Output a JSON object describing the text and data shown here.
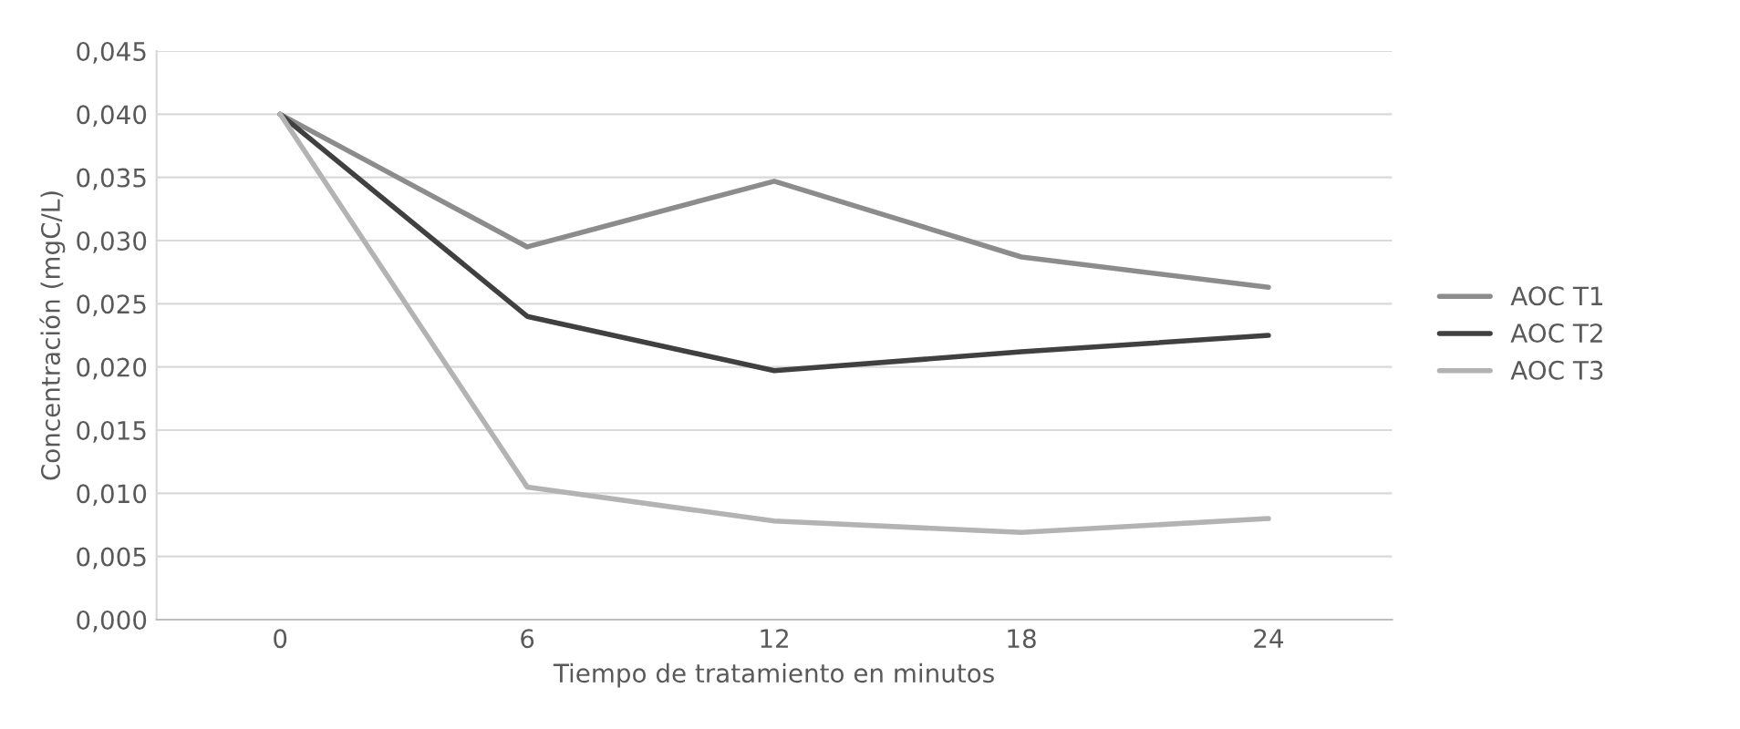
{
  "chart_data": {
    "type": "line",
    "xlabel": "Tiempo de tratamiento en minutos",
    "ylabel": "Concentración (mgC/L)",
    "categories": [
      "0",
      "6",
      "12",
      "18",
      "24"
    ],
    "series": [
      {
        "name": "AOC T1",
        "color": "#8c8c8c",
        "values": [
          0.04,
          0.0295,
          0.0347,
          0.0287,
          0.0263
        ]
      },
      {
        "name": "AOC T2",
        "color": "#404040",
        "values": [
          0.04,
          0.024,
          0.0197,
          0.0212,
          0.0225
        ]
      },
      {
        "name": "AOC T3",
        "color": "#b3b3b3",
        "values": [
          0.04,
          0.0105,
          0.0078,
          0.0069,
          0.008
        ]
      }
    ],
    "ylim": [
      0,
      0.045
    ],
    "yticks": [
      {
        "value": 0,
        "label": "0,000"
      },
      {
        "value": 0.005,
        "label": "0,005"
      },
      {
        "value": 0.01,
        "label": "0,010"
      },
      {
        "value": 0.015,
        "label": "0,015"
      },
      {
        "value": 0.02,
        "label": "0,020"
      },
      {
        "value": 0.025,
        "label": "0,025"
      },
      {
        "value": 0.03,
        "label": "0,030"
      },
      {
        "value": 0.035,
        "label": "0,035"
      },
      {
        "value": 0.04,
        "label": "0,040"
      },
      {
        "value": 0.045,
        "label": "0,045"
      }
    ],
    "grid": "y",
    "legend": "right",
    "marker": "none",
    "line_style": "solid"
  }
}
